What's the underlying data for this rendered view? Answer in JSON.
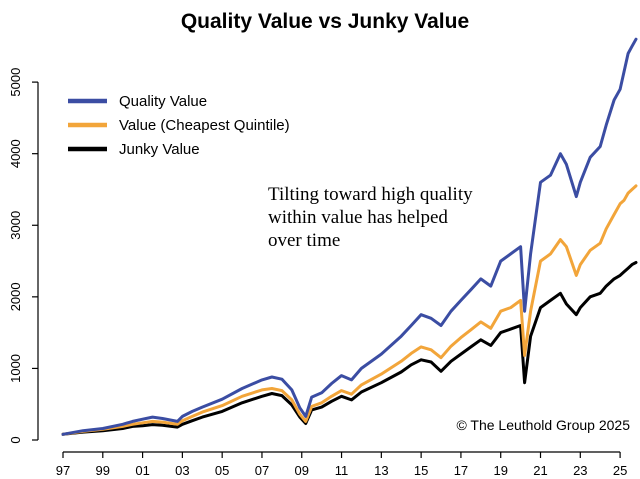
{
  "chart_data": {
    "type": "line",
    "title": "Quality Value vs Junky Value",
    "xlabel": "",
    "ylabel": "",
    "xlim": [
      1997.0,
      2025.9
    ],
    "ylim": [
      0,
      5700
    ],
    "y_ticks": [
      0,
      1000,
      2000,
      3000,
      4000,
      5000
    ],
    "x_ticks": [
      1997,
      1999,
      2001,
      2003,
      2005,
      2007,
      2009,
      2011,
      2013,
      2015,
      2017,
      2019,
      2021,
      2023,
      2025
    ],
    "x_tick_labels": [
      "97",
      "99",
      "01",
      "03",
      "05",
      "07",
      "09",
      "11",
      "13",
      "15",
      "17",
      "19",
      "21",
      "23",
      "25"
    ],
    "grid": false,
    "legend_position": "top-left",
    "series": [
      {
        "name": "Quality Value",
        "color": "#3b4da3",
        "x": [
          1997.0,
          1998.0,
          1999.0,
          2000.0,
          2000.5,
          2001.0,
          2001.5,
          2002.0,
          2002.75,
          2003.0,
          2003.5,
          2004.0,
          2005.0,
          2006.0,
          2007.0,
          2007.5,
          2008.0,
          2008.5,
          2008.9,
          2009.2,
          2009.5,
          2010.0,
          2010.5,
          2011.0,
          2011.5,
          2012.0,
          2013.0,
          2014.0,
          2014.5,
          2015.0,
          2015.5,
          2016.0,
          2016.5,
          2017.0,
          2017.5,
          2018.0,
          2018.5,
          2019.0,
          2019.5,
          2020.0,
          2020.2,
          2020.5,
          2021.0,
          2021.5,
          2022.0,
          2022.3,
          2022.8,
          2023.0,
          2023.5,
          2024.0,
          2024.3,
          2024.7,
          2025.0,
          2025.2,
          2025.4,
          2025.6,
          2025.8
        ],
        "values": [
          80,
          130,
          160,
          220,
          260,
          290,
          320,
          300,
          260,
          330,
          400,
          460,
          570,
          720,
          840,
          880,
          850,
          700,
          450,
          330,
          600,
          660,
          790,
          900,
          840,
          1000,
          1200,
          1450,
          1600,
          1750,
          1700,
          1600,
          1800,
          1950,
          2100,
          2250,
          2150,
          2500,
          2600,
          2700,
          1800,
          2600,
          3600,
          3700,
          4000,
          3850,
          3400,
          3600,
          3950,
          4100,
          4400,
          4750,
          4900,
          5150,
          5400,
          5500,
          5600
        ]
      },
      {
        "name": "Value (Cheapest Quintile)",
        "color": "#f2a53a",
        "x": [
          1997.0,
          1998.0,
          1999.0,
          2000.0,
          2000.5,
          2001.0,
          2001.5,
          2002.0,
          2002.75,
          2003.0,
          2003.5,
          2004.0,
          2005.0,
          2006.0,
          2007.0,
          2007.5,
          2008.0,
          2008.5,
          2008.9,
          2009.2,
          2009.5,
          2010.0,
          2010.5,
          2011.0,
          2011.5,
          2012.0,
          2013.0,
          2014.0,
          2014.5,
          2015.0,
          2015.5,
          2016.0,
          2016.5,
          2017.0,
          2017.5,
          2018.0,
          2018.5,
          2019.0,
          2019.5,
          2020.0,
          2020.2,
          2020.5,
          2021.0,
          2021.5,
          2022.0,
          2022.3,
          2022.8,
          2023.0,
          2023.5,
          2024.0,
          2024.3,
          2024.7,
          2025.0,
          2025.2,
          2025.4,
          2025.6,
          2025.8
        ],
        "values": [
          80,
          120,
          150,
          190,
          220,
          240,
          260,
          250,
          220,
          270,
          330,
          390,
          480,
          610,
          700,
          720,
          690,
          560,
          360,
          260,
          470,
          520,
          610,
          690,
          640,
          770,
          920,
          1100,
          1210,
          1300,
          1260,
          1150,
          1310,
          1430,
          1540,
          1650,
          1560,
          1800,
          1850,
          1950,
          1180,
          1800,
          2500,
          2600,
          2800,
          2700,
          2300,
          2450,
          2650,
          2750,
          2950,
          3150,
          3300,
          3350,
          3450,
          3500,
          3550
        ]
      },
      {
        "name": "Junky Value",
        "color": "#000000",
        "x": [
          1997.0,
          1998.0,
          1999.0,
          2000.0,
          2000.5,
          2001.0,
          2001.5,
          2002.0,
          2002.75,
          2003.0,
          2003.5,
          2004.0,
          2005.0,
          2006.0,
          2007.0,
          2007.5,
          2008.0,
          2008.5,
          2008.9,
          2009.2,
          2009.5,
          2010.0,
          2010.5,
          2011.0,
          2011.5,
          2012.0,
          2013.0,
          2014.0,
          2014.5,
          2015.0,
          2015.5,
          2016.0,
          2016.5,
          2017.0,
          2017.5,
          2018.0,
          2018.5,
          2019.0,
          2019.5,
          2020.0,
          2020.2,
          2020.5,
          2021.0,
          2021.5,
          2022.0,
          2022.3,
          2022.8,
          2023.0,
          2023.5,
          2024.0,
          2024.3,
          2024.7,
          2025.0,
          2025.2,
          2025.4,
          2025.6,
          2025.8
        ],
        "values": [
          80,
          110,
          130,
          160,
          190,
          200,
          215,
          205,
          180,
          220,
          270,
          320,
          400,
          520,
          610,
          650,
          620,
          490,
          320,
          230,
          420,
          460,
          540,
          610,
          560,
          670,
          800,
          950,
          1050,
          1120,
          1090,
          960,
          1100,
          1200,
          1300,
          1400,
          1320,
          1500,
          1550,
          1600,
          800,
          1450,
          1850,
          1950,
          2050,
          1900,
          1750,
          1850,
          2000,
          2050,
          2150,
          2250,
          2300,
          2350,
          2400,
          2450,
          2480
        ]
      }
    ],
    "annotations": [
      {
        "lines": [
          "Tilting toward high quality",
          "within value has helped",
          "over time"
        ]
      },
      {
        "text": "© The Leuthold Group 2025"
      }
    ]
  }
}
